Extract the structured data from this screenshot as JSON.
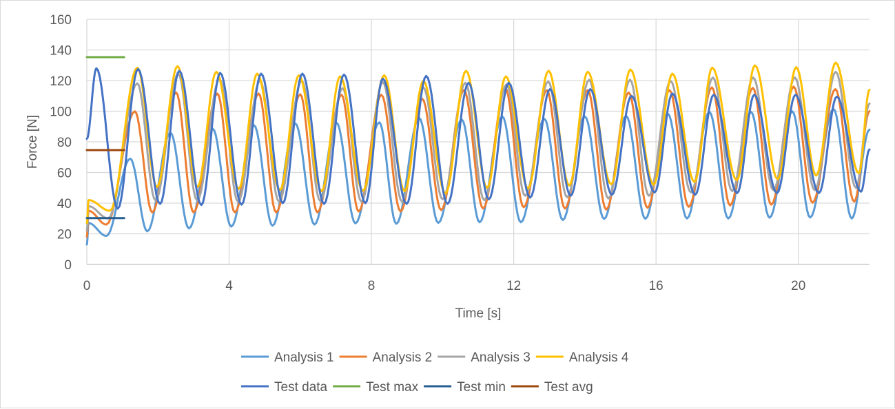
{
  "chart_data": {
    "type": "line",
    "title": "",
    "xlabel": "Time [s]",
    "ylabel": "Force [N]",
    "xlim": [
      0,
      22
    ],
    "ylim": [
      0,
      160
    ],
    "xticks": [
      "0",
      "4",
      "8",
      "12",
      "16",
      "20"
    ],
    "yticks": [
      "0",
      "20",
      "40",
      "60",
      "80",
      "100",
      "120",
      "140",
      "160"
    ],
    "grid": true,
    "legend_position": "bottom",
    "series": [
      {
        "name": "Analysis 1",
        "color": "#5B9BD5",
        "points": [
          [
            0,
            13
          ],
          [
            0.05,
            27
          ],
          [
            0.55,
            18.6
          ],
          [
            1.22,
            69
          ],
          [
            1.7,
            21.6
          ],
          [
            2.35,
            86
          ],
          [
            2.87,
            23.5
          ],
          [
            3.54,
            88.5
          ],
          [
            4.06,
            24.7
          ],
          [
            4.7,
            90.8
          ],
          [
            5.22,
            25.3
          ],
          [
            5.86,
            92
          ],
          [
            6.4,
            26
          ],
          [
            7.02,
            92.4
          ],
          [
            7.55,
            26.8
          ],
          [
            8.22,
            92.7
          ],
          [
            8.7,
            26.5
          ],
          [
            9.34,
            95.7
          ],
          [
            9.88,
            27.1
          ],
          [
            10.54,
            94.5
          ],
          [
            11.04,
            27.5
          ],
          [
            11.68,
            96.5
          ],
          [
            12.2,
            27.5
          ],
          [
            12.86,
            95
          ],
          [
            13.38,
            29
          ],
          [
            14.0,
            96.5
          ],
          [
            14.54,
            29.7
          ],
          [
            15.16,
            96.9
          ],
          [
            15.7,
            29.8
          ],
          [
            16.33,
            98.4
          ],
          [
            16.87,
            30
          ],
          [
            17.5,
            99.5
          ],
          [
            18.03,
            30
          ],
          [
            18.67,
            99.5
          ],
          [
            19.19,
            30.5
          ],
          [
            19.83,
            99.9
          ],
          [
            20.33,
            30.6
          ],
          [
            20.99,
            101.4
          ],
          [
            21.5,
            30
          ],
          [
            22,
            88
          ]
        ]
      },
      {
        "name": "Analysis 2",
        "color": "#ED7D31",
        "points": [
          [
            0,
            18
          ],
          [
            0.05,
            35
          ],
          [
            0.55,
            26
          ],
          [
            1.35,
            99.9
          ],
          [
            1.84,
            34
          ],
          [
            2.51,
            112.2
          ],
          [
            3.0,
            34
          ],
          [
            3.67,
            111.5
          ],
          [
            4.16,
            34
          ],
          [
            4.83,
            111.5
          ],
          [
            5.32,
            34
          ],
          [
            6.0,
            111
          ],
          [
            6.48,
            34
          ],
          [
            7.16,
            110.7
          ],
          [
            7.64,
            34.6
          ],
          [
            8.28,
            110.7
          ],
          [
            8.82,
            34.6
          ],
          [
            9.43,
            108
          ],
          [
            9.96,
            35.5
          ],
          [
            10.6,
            113.7
          ],
          [
            11.14,
            36.5
          ],
          [
            11.76,
            115.2
          ],
          [
            12.28,
            37.3
          ],
          [
            12.93,
            113.7
          ],
          [
            13.44,
            36.5
          ],
          [
            14.08,
            113.7
          ],
          [
            14.6,
            35.8
          ],
          [
            15.23,
            112.2
          ],
          [
            15.76,
            37
          ],
          [
            16.38,
            113.7
          ],
          [
            16.92,
            37.6
          ],
          [
            17.57,
            115.5
          ],
          [
            18.08,
            38.5
          ],
          [
            18.72,
            115.2
          ],
          [
            19.24,
            39
          ],
          [
            19.87,
            116
          ],
          [
            20.4,
            40.3
          ],
          [
            21.04,
            114.4
          ],
          [
            21.57,
            41
          ],
          [
            22,
            100
          ]
        ]
      },
      {
        "name": "Analysis 3",
        "color": "#A5A5A5",
        "points": [
          [
            0,
            22
          ],
          [
            0.05,
            38
          ],
          [
            0.6,
            30
          ],
          [
            1.42,
            118.2
          ],
          [
            1.93,
            41.8
          ],
          [
            2.57,
            124.5
          ],
          [
            3.1,
            41.8
          ],
          [
            3.73,
            121
          ],
          [
            4.25,
            41
          ],
          [
            4.87,
            120
          ],
          [
            5.4,
            41
          ],
          [
            6.04,
            120
          ],
          [
            6.56,
            41.5
          ],
          [
            7.19,
            115
          ],
          [
            7.72,
            41
          ],
          [
            8.32,
            119
          ],
          [
            8.86,
            41
          ],
          [
            9.46,
            115.5
          ],
          [
            10.0,
            42.5
          ],
          [
            10.64,
            118.5
          ],
          [
            11.17,
            42
          ],
          [
            11.8,
            117.5
          ],
          [
            12.32,
            44.8
          ],
          [
            12.97,
            119.4
          ],
          [
            13.5,
            43.9
          ],
          [
            14.12,
            120.5
          ],
          [
            14.66,
            43
          ],
          [
            15.27,
            120.5
          ],
          [
            15.8,
            44.8
          ],
          [
            16.41,
            119.7
          ],
          [
            16.98,
            47
          ],
          [
            17.6,
            122
          ],
          [
            18.14,
            47.8
          ],
          [
            18.73,
            122
          ],
          [
            19.3,
            48.5
          ],
          [
            19.9,
            122
          ],
          [
            20.46,
            48.5
          ],
          [
            21.05,
            125.7
          ],
          [
            21.62,
            50
          ],
          [
            22,
            105
          ]
        ]
      },
      {
        "name": "Analysis 4",
        "color": "#FFC000",
        "points": [
          [
            0,
            27
          ],
          [
            0.05,
            42
          ],
          [
            0.65,
            35
          ],
          [
            1.42,
            128.4
          ],
          [
            1.97,
            50.5
          ],
          [
            2.55,
            129.4
          ],
          [
            3.11,
            50.5
          ],
          [
            3.64,
            125.7
          ],
          [
            4.27,
            49.3
          ],
          [
            4.79,
            124.5
          ],
          [
            5.43,
            48.5
          ],
          [
            5.96,
            123.4
          ],
          [
            6.6,
            47.8
          ],
          [
            7.12,
            122.7
          ],
          [
            7.76,
            48
          ],
          [
            8.36,
            123.4
          ],
          [
            8.93,
            47.8
          ],
          [
            9.46,
            119.7
          ],
          [
            10.08,
            46.3
          ],
          [
            10.66,
            126.4
          ],
          [
            11.25,
            50
          ],
          [
            11.78,
            122.7
          ],
          [
            12.4,
            49.6
          ],
          [
            12.98,
            126.4
          ],
          [
            13.56,
            51.5
          ],
          [
            14.08,
            125.7
          ],
          [
            14.74,
            52.3
          ],
          [
            15.28,
            127.2
          ],
          [
            15.93,
            52
          ],
          [
            16.46,
            124.5
          ],
          [
            17.08,
            53.8
          ],
          [
            17.58,
            128.4
          ],
          [
            18.27,
            55
          ],
          [
            18.78,
            129.9
          ],
          [
            19.42,
            55.6
          ],
          [
            19.94,
            128.7
          ],
          [
            20.5,
            58
          ],
          [
            21.05,
            131.7
          ],
          [
            21.7,
            59.5
          ],
          [
            22,
            114
          ]
        ]
      },
      {
        "name": "Test data",
        "color": "#4472C4",
        "points": [
          [
            0,
            82
          ],
          [
            0.27,
            128
          ],
          [
            0.87,
            36.4
          ],
          [
            1.44,
            127.5
          ],
          [
            2.06,
            39.5
          ],
          [
            2.6,
            126.4
          ],
          [
            3.22,
            38.8
          ],
          [
            3.75,
            125
          ],
          [
            4.35,
            39
          ],
          [
            4.9,
            124.5
          ],
          [
            5.51,
            40
          ],
          [
            6.06,
            124.5
          ],
          [
            6.67,
            39.5
          ],
          [
            7.23,
            123.9
          ],
          [
            7.83,
            40
          ],
          [
            8.32,
            121.2
          ],
          [
            8.99,
            39.5
          ],
          [
            9.54,
            123
          ],
          [
            10.14,
            39.5
          ],
          [
            10.73,
            118.5
          ],
          [
            11.3,
            42.5
          ],
          [
            11.86,
            118.5
          ],
          [
            12.46,
            43.6
          ],
          [
            13.02,
            114.4
          ],
          [
            13.6,
            44.8
          ],
          [
            14.15,
            114.4
          ],
          [
            14.76,
            45.5
          ],
          [
            15.31,
            110
          ],
          [
            15.96,
            47
          ],
          [
            16.46,
            111.5
          ],
          [
            17.1,
            45.5
          ],
          [
            17.62,
            110.7
          ],
          [
            18.28,
            46.6
          ],
          [
            18.76,
            110.7
          ],
          [
            19.4,
            46.6
          ],
          [
            19.92,
            110.7
          ],
          [
            20.58,
            46.6
          ],
          [
            21.08,
            109.5
          ],
          [
            21.76,
            47.5
          ],
          [
            22,
            75
          ]
        ]
      },
      {
        "name": "Test max",
        "color": "#70AD47",
        "points": [
          [
            0,
            135.3
          ],
          [
            1.05,
            135.3
          ]
        ]
      },
      {
        "name": "Test min",
        "color": "#255E91",
        "points": [
          [
            0,
            30.2
          ],
          [
            1.05,
            30.2
          ]
        ]
      },
      {
        "name": "Test avg",
        "color": "#9E480E",
        "points": [
          [
            0,
            74.6
          ],
          [
            1.05,
            74.6
          ]
        ]
      }
    ]
  }
}
